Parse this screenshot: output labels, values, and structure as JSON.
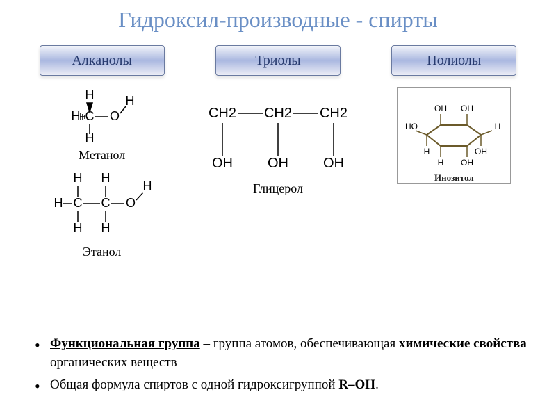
{
  "title": "Гидроксил-производные - спирты",
  "title_color": "#6a8fc5",
  "title_fontsize": 32,
  "pill_style": {
    "gradient": [
      "#f2f4fa",
      "#aab8e0",
      "#ecedf5"
    ],
    "border_color": "#6a7aa0",
    "text_color": "#273a6e",
    "fontsize": 20
  },
  "columns": [
    {
      "heading": "Алканолы",
      "molecules": [
        {
          "name": "Метанол",
          "kind": "methanol"
        },
        {
          "name": "Этанол",
          "kind": "ethanol"
        }
      ]
    },
    {
      "heading": "Триолы",
      "molecules": [
        {
          "name": "Глицерол",
          "kind": "glycerol"
        }
      ]
    },
    {
      "heading": "Полиолы",
      "molecules": [
        {
          "name": "Инозитол",
          "kind": "inositol"
        }
      ]
    }
  ],
  "molecule_render": {
    "font_family": "sans-serif",
    "label_fontsize": 18,
    "bond_color": "#000000",
    "wedge_fill": "#000000",
    "inositol_stroke": "#6b5a2a"
  },
  "glycerol_formula": {
    "top": [
      "CH2",
      "CH2",
      "CH2"
    ],
    "bottom": [
      "OH",
      "OH",
      "OH"
    ]
  },
  "bullets": [
    {
      "segments": [
        {
          "text": "Функциональная группа",
          "bold": true,
          "underline": true
        },
        {
          "text": " – группа атомов, обеспечивающая "
        },
        {
          "text": "химические свойства",
          "bold": true
        },
        {
          "text": " органических веществ"
        }
      ]
    },
    {
      "segments": [
        {
          "text": "Общая формула спиртов с одной гидроксигруппой "
        },
        {
          "text": "R–OH",
          "bold": true
        },
        {
          "text": "."
        }
      ]
    }
  ]
}
